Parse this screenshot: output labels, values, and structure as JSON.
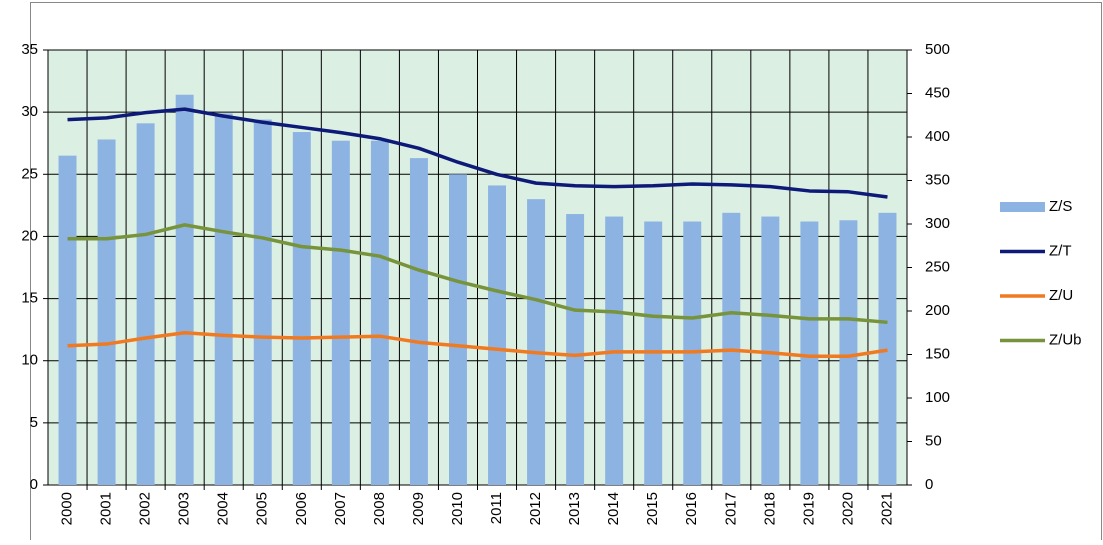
{
  "chart_data": {
    "type": "bar_line",
    "categories": [
      "2000",
      "2001",
      "2002",
      "2003",
      "2004",
      "2005",
      "2006",
      "2007",
      "2008",
      "2009",
      "2010",
      "2011",
      "2012",
      "2013",
      "2014",
      "2015",
      "2016",
      "2017",
      "2018",
      "2019",
      "2020",
      "2021"
    ],
    "series": [
      {
        "name": "Z/S",
        "type": "bar",
        "color": "#8db3e2",
        "values": [
          26.5,
          27.8,
          29.1,
          31.4,
          29.9,
          29.4,
          28.4,
          27.7,
          27.7,
          26.3,
          25.0,
          24.1,
          23.0,
          21.8,
          21.6,
          21.2,
          21.2,
          21.9,
          21.6,
          21.2,
          21.3,
          21.9
        ]
      },
      {
        "name": "Z/T",
        "type": "line",
        "axis": "y2",
        "color": "#0d1a78",
        "values": [
          420,
          422,
          428,
          432,
          424,
          417,
          411,
          405,
          398,
          387,
          371,
          357,
          347,
          344,
          343,
          344,
          346,
          345,
          343,
          338,
          337,
          331
        ]
      },
      {
        "name": "Z/U",
        "type": "line",
        "axis": "y2",
        "color": "#f07a22",
        "values": [
          160,
          162,
          169,
          175,
          172,
          170,
          169,
          170,
          171,
          164,
          160,
          156,
          152,
          149,
          153,
          153,
          153,
          155,
          152,
          148,
          148,
          155
        ]
      },
      {
        "name": "Z/Ub",
        "type": "line",
        "axis": "y2",
        "color": "#77933c",
        "values": [
          283,
          283,
          288,
          299,
          291,
          284,
          274,
          270,
          263,
          247,
          234,
          223,
          213,
          201,
          199,
          194,
          192,
          198,
          195,
          191,
          191,
          187
        ]
      }
    ],
    "ylim": [
      0,
      35
    ],
    "yticks": [
      0,
      5,
      10,
      15,
      20,
      25,
      30,
      35
    ],
    "y2lim": [
      0,
      500
    ],
    "y2ticks": [
      0,
      50,
      100,
      150,
      200,
      250,
      300,
      350,
      400,
      450,
      500
    ],
    "grid": true,
    "legend": "right",
    "plot_background": "#dcefe3"
  }
}
